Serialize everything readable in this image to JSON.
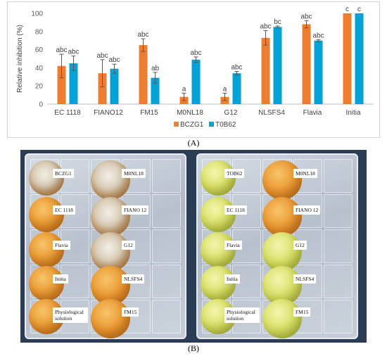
{
  "chart_data": {
    "type": "bar",
    "categories": [
      "EC 1118",
      "FIANO12",
      "FM15",
      "M0NL18",
      "G12",
      "NLSFS4",
      "Flavia",
      "Initia"
    ],
    "series": [
      {
        "name": "BCZG1",
        "color": "#ed7d31",
        "values": [
          42,
          34,
          65,
          8,
          8,
          73,
          88,
          100
        ],
        "errors": [
          13,
          15,
          7,
          4,
          4,
          8,
          4,
          0
        ],
        "letters": [
          "abc",
          "abc",
          "abc",
          "a",
          "a",
          "abc",
          "abc",
          "c"
        ]
      },
      {
        "name": "T0B62",
        "color": "#00a2d7",
        "values": [
          45,
          39,
          29,
          49,
          34,
          85,
          70,
          100
        ],
        "errors": [
          8,
          5,
          6,
          3,
          2,
          1,
          1,
          0
        ],
        "letters": [
          "abc",
          "abc",
          "ab",
          "abc",
          "abc",
          "bc",
          "abc",
          "c"
        ]
      }
    ],
    "ylabel": "Relative inhibition (%)",
    "ylim": [
      0,
      100
    ],
    "yticks": [
      0,
      20,
      40,
      60,
      80,
      100
    ],
    "grid": false,
    "legend_position": "bottom-center"
  },
  "panels": {
    "a_label": "(A)",
    "b_label": "(B)"
  },
  "photo": {
    "left_tray": [
      "BCZG1",
      "M0NL18",
      "EC 1118",
      "FIANO 12",
      "Flavia",
      "G12",
      "Initia",
      "NLSFS4",
      "Physiological solution",
      "FM15"
    ],
    "right_tray": [
      "TOB62",
      "M0NL18",
      "EC 1118",
      "FIANO 12",
      "Flavia",
      "G12",
      "Initia",
      "NLSFS4",
      "Physiological solution",
      "FM15"
    ]
  }
}
